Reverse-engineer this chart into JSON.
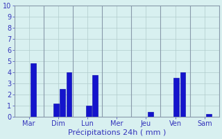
{
  "days": [
    "Mar",
    "Dim",
    "Lun",
    "Mer",
    "Jeu",
    "Ven",
    "Sam"
  ],
  "values_per_day": [
    [
      4.85
    ],
    [
      1.2,
      2.55,
      4.0
    ],
    [
      1.0,
      3.8
    ],
    [],
    [
      0.45
    ],
    [
      3.55,
      4.0
    ],
    [
      0.3
    ]
  ],
  "bar_color": "#1414CC",
  "bar_edge_color": "#0000AA",
  "background_color": "#D8F0F0",
  "grid_color": "#B0CCCC",
  "text_color": "#3333BB",
  "separator_color": "#8899AA",
  "xlabel": "Précipitations 24h ( mm )",
  "ylim": [
    0,
    10
  ],
  "yticks": [
    0,
    1,
    2,
    3,
    4,
    5,
    6,
    7,
    8,
    9,
    10
  ],
  "xlabel_fontsize": 8,
  "tick_fontsize": 7,
  "figsize": [
    3.2,
    2.0
  ],
  "dpi": 100
}
